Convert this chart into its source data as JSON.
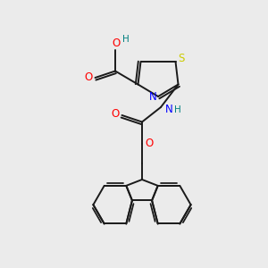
{
  "background_color": "#ebebeb",
  "bond_color": "#1a1a1a",
  "atom_colors": {
    "O": "#ff0000",
    "N": "#0000ff",
    "S": "#cccc00",
    "H": "#008080",
    "C": "#1a1a1a"
  },
  "figsize": [
    3.0,
    3.0
  ],
  "dpi": 100
}
